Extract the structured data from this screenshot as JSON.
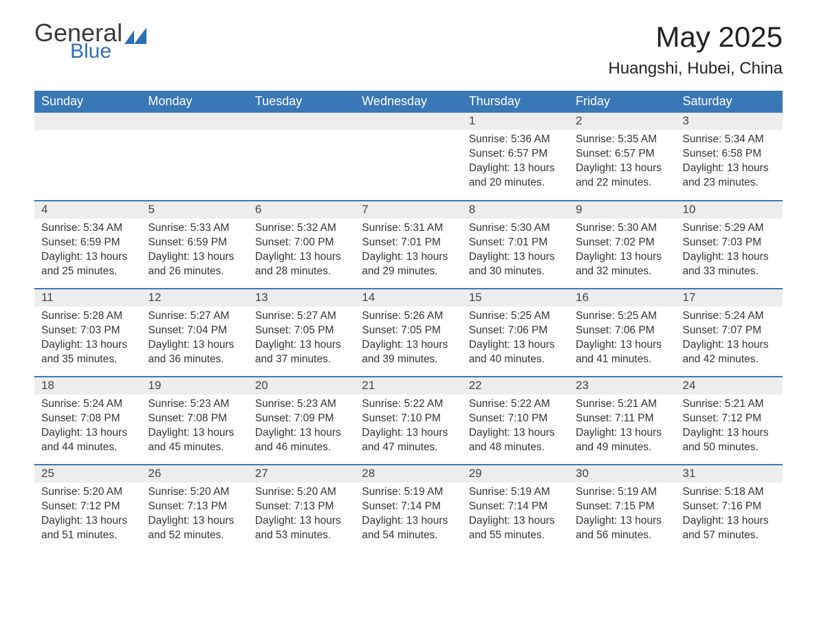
{
  "logo": {
    "general": "General",
    "blue": "Blue"
  },
  "title": "May 2025",
  "location": "Huangshi, Hubei, China",
  "colors": {
    "header_bg": "#3a77b6",
    "header_text": "#ffffff",
    "daynum_bg": "#ededed",
    "row_border": "#3a77b6",
    "logo_blue": "#2f6fb0",
    "text": "#333333",
    "background": "#ffffff"
  },
  "fonts": {
    "title_size_pt": 32,
    "location_size_pt": 18,
    "header_size_pt": 14,
    "body_size_pt": 12
  },
  "weekdays": [
    "Sunday",
    "Monday",
    "Tuesday",
    "Wednesday",
    "Thursday",
    "Friday",
    "Saturday"
  ],
  "grid": [
    [
      {
        "day": null
      },
      {
        "day": null
      },
      {
        "day": null
      },
      {
        "day": null
      },
      {
        "day": 1,
        "sunrise": "5:36 AM",
        "sunset": "6:57 PM",
        "daylight": "13 hours and 20 minutes."
      },
      {
        "day": 2,
        "sunrise": "5:35 AM",
        "sunset": "6:57 PM",
        "daylight": "13 hours and 22 minutes."
      },
      {
        "day": 3,
        "sunrise": "5:34 AM",
        "sunset": "6:58 PM",
        "daylight": "13 hours and 23 minutes."
      }
    ],
    [
      {
        "day": 4,
        "sunrise": "5:34 AM",
        "sunset": "6:59 PM",
        "daylight": "13 hours and 25 minutes."
      },
      {
        "day": 5,
        "sunrise": "5:33 AM",
        "sunset": "6:59 PM",
        "daylight": "13 hours and 26 minutes."
      },
      {
        "day": 6,
        "sunrise": "5:32 AM",
        "sunset": "7:00 PM",
        "daylight": "13 hours and 28 minutes."
      },
      {
        "day": 7,
        "sunrise": "5:31 AM",
        "sunset": "7:01 PM",
        "daylight": "13 hours and 29 minutes."
      },
      {
        "day": 8,
        "sunrise": "5:30 AM",
        "sunset": "7:01 PM",
        "daylight": "13 hours and 30 minutes."
      },
      {
        "day": 9,
        "sunrise": "5:30 AM",
        "sunset": "7:02 PM",
        "daylight": "13 hours and 32 minutes."
      },
      {
        "day": 10,
        "sunrise": "5:29 AM",
        "sunset": "7:03 PM",
        "daylight": "13 hours and 33 minutes."
      }
    ],
    [
      {
        "day": 11,
        "sunrise": "5:28 AM",
        "sunset": "7:03 PM",
        "daylight": "13 hours and 35 minutes."
      },
      {
        "day": 12,
        "sunrise": "5:27 AM",
        "sunset": "7:04 PM",
        "daylight": "13 hours and 36 minutes."
      },
      {
        "day": 13,
        "sunrise": "5:27 AM",
        "sunset": "7:05 PM",
        "daylight": "13 hours and 37 minutes."
      },
      {
        "day": 14,
        "sunrise": "5:26 AM",
        "sunset": "7:05 PM",
        "daylight": "13 hours and 39 minutes."
      },
      {
        "day": 15,
        "sunrise": "5:25 AM",
        "sunset": "7:06 PM",
        "daylight": "13 hours and 40 minutes."
      },
      {
        "day": 16,
        "sunrise": "5:25 AM",
        "sunset": "7:06 PM",
        "daylight": "13 hours and 41 minutes."
      },
      {
        "day": 17,
        "sunrise": "5:24 AM",
        "sunset": "7:07 PM",
        "daylight": "13 hours and 42 minutes."
      }
    ],
    [
      {
        "day": 18,
        "sunrise": "5:24 AM",
        "sunset": "7:08 PM",
        "daylight": "13 hours and 44 minutes."
      },
      {
        "day": 19,
        "sunrise": "5:23 AM",
        "sunset": "7:08 PM",
        "daylight": "13 hours and 45 minutes."
      },
      {
        "day": 20,
        "sunrise": "5:23 AM",
        "sunset": "7:09 PM",
        "daylight": "13 hours and 46 minutes."
      },
      {
        "day": 21,
        "sunrise": "5:22 AM",
        "sunset": "7:10 PM",
        "daylight": "13 hours and 47 minutes."
      },
      {
        "day": 22,
        "sunrise": "5:22 AM",
        "sunset": "7:10 PM",
        "daylight": "13 hours and 48 minutes."
      },
      {
        "day": 23,
        "sunrise": "5:21 AM",
        "sunset": "7:11 PM",
        "daylight": "13 hours and 49 minutes."
      },
      {
        "day": 24,
        "sunrise": "5:21 AM",
        "sunset": "7:12 PM",
        "daylight": "13 hours and 50 minutes."
      }
    ],
    [
      {
        "day": 25,
        "sunrise": "5:20 AM",
        "sunset": "7:12 PM",
        "daylight": "13 hours and 51 minutes."
      },
      {
        "day": 26,
        "sunrise": "5:20 AM",
        "sunset": "7:13 PM",
        "daylight": "13 hours and 52 minutes."
      },
      {
        "day": 27,
        "sunrise": "5:20 AM",
        "sunset": "7:13 PM",
        "daylight": "13 hours and 53 minutes."
      },
      {
        "day": 28,
        "sunrise": "5:19 AM",
        "sunset": "7:14 PM",
        "daylight": "13 hours and 54 minutes."
      },
      {
        "day": 29,
        "sunrise": "5:19 AM",
        "sunset": "7:14 PM",
        "daylight": "13 hours and 55 minutes."
      },
      {
        "day": 30,
        "sunrise": "5:19 AM",
        "sunset": "7:15 PM",
        "daylight": "13 hours and 56 minutes."
      },
      {
        "day": 31,
        "sunrise": "5:18 AM",
        "sunset": "7:16 PM",
        "daylight": "13 hours and 57 minutes."
      }
    ]
  ],
  "labels": {
    "sunrise": "Sunrise: ",
    "sunset": "Sunset: ",
    "daylight": "Daylight: "
  }
}
